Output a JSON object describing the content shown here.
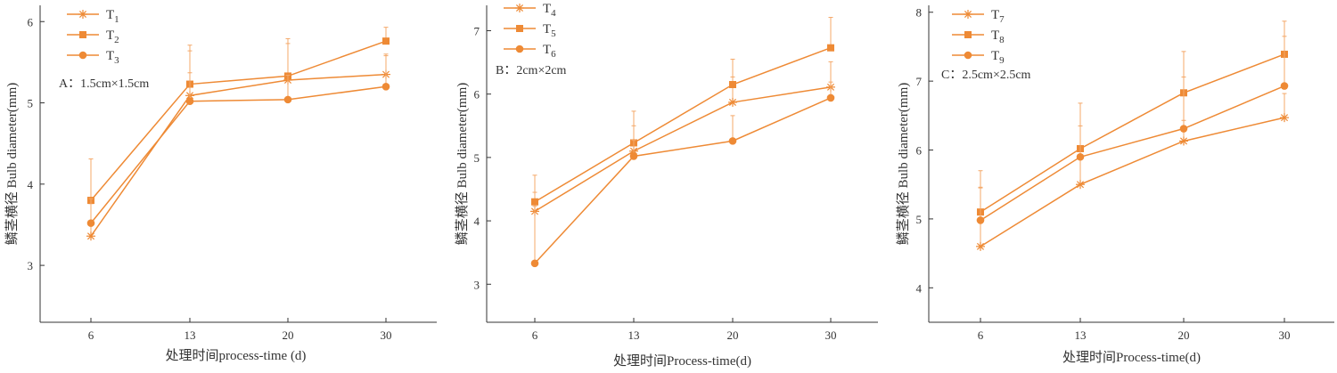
{
  "style": {
    "line_color": "#ee8a35",
    "error_color": "#f4a869",
    "axis_color": "#333333"
  },
  "chart_data": [
    {
      "type": "line",
      "panel_label": "A：1.5cm×1.5cm",
      "xlabel": "处理时间process-time (d)",
      "ylabel": "鳞茎横径 Bulb diameter(mm)",
      "categories": [
        "6",
        "13",
        "20",
        "30"
      ],
      "ylim": [
        2.3,
        6.2
      ],
      "yticks": [
        3,
        4,
        5,
        6
      ],
      "legend_position": "top-left",
      "series": [
        {
          "name": "T",
          "sub": "1",
          "marker": "star",
          "values": [
            3.36,
            5.09,
            5.28,
            5.35
          ],
          "errors": [
            0.4,
            0.55,
            0.45,
            0.25
          ]
        },
        {
          "name": "T",
          "sub": "2",
          "marker": "square",
          "values": [
            3.8,
            5.23,
            5.33,
            5.76
          ],
          "errors": [
            0.51,
            0.48,
            0.46,
            0.17
          ]
        },
        {
          "name": "T",
          "sub": "3",
          "marker": "circle",
          "values": [
            3.52,
            5.02,
            5.04,
            5.2
          ],
          "errors": [
            0.3,
            0.35,
            0.3,
            0.38
          ]
        }
      ]
    },
    {
      "type": "line",
      "panel_label": "B：2cm×2cm",
      "xlabel": "处理时间Process-time(d)",
      "ylabel": "鳞茎横径 Bulb diameter(mm)",
      "categories": [
        "6",
        "13",
        "20",
        "30"
      ],
      "ylim": [
        2.4,
        7.4
      ],
      "yticks": [
        3,
        4,
        5,
        6,
        7
      ],
      "legend_position": "top-left",
      "series": [
        {
          "name": "T",
          "sub": "4",
          "marker": "star",
          "values": [
            4.15,
            5.1,
            5.87,
            6.11
          ],
          "errors": [
            0.3,
            0.4,
            0.4,
            0.4
          ]
        },
        {
          "name": "T",
          "sub": "5",
          "marker": "square",
          "values": [
            4.3,
            5.23,
            6.15,
            6.73
          ],
          "errors": [
            0.42,
            0.5,
            0.4,
            0.48
          ]
        },
        {
          "name": "T",
          "sub": "6",
          "marker": "circle",
          "values": [
            3.33,
            5.02,
            5.26,
            5.94
          ],
          "errors": [
            0.9,
            0.25,
            0.4,
            0.25
          ]
        }
      ]
    },
    {
      "type": "line",
      "panel_label": "C：2.5cm×2.5cm",
      "xlabel": "处理时间Process-time(d)",
      "ylabel": "鳞茎横径 Bulb diameter(mm)",
      "categories": [
        "6",
        "13",
        "20",
        "30"
      ],
      "ylim": [
        3.5,
        8.1
      ],
      "yticks": [
        4,
        5,
        6,
        7,
        8
      ],
      "legend_position": "top-left",
      "series": [
        {
          "name": "T",
          "sub": "7",
          "marker": "star",
          "values": [
            4.6,
            5.5,
            6.13,
            6.47
          ],
          "errors": [
            0.85,
            0.4,
            0.3,
            0.35
          ]
        },
        {
          "name": "T",
          "sub": "8",
          "marker": "square",
          "values": [
            5.1,
            6.02,
            6.83,
            7.39
          ],
          "errors": [
            0.6,
            0.66,
            0.6,
            0.48
          ]
        },
        {
          "name": "T",
          "sub": "9",
          "marker": "circle",
          "values": [
            4.98,
            5.9,
            6.31,
            6.93
          ],
          "errors": [
            0.48,
            0.45,
            0.75,
            0.72
          ]
        }
      ]
    }
  ]
}
